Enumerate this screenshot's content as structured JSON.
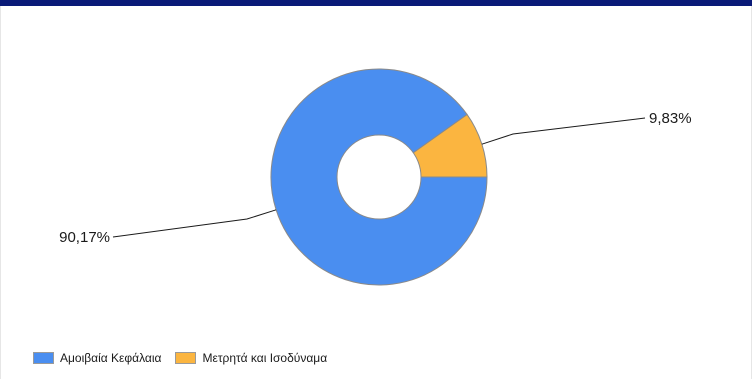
{
  "chart_data": {
    "type": "pie",
    "variant": "donut",
    "slices": [
      {
        "name": "Αμοιβαία Κεφάλαια",
        "value": 90.17,
        "label": "90,17%",
        "color": "#4a8ef0"
      },
      {
        "name": "Μετρητά και Ισοδύναμα",
        "value": 9.83,
        "label": "9,83%",
        "color": "#fbb540"
      }
    ],
    "legend_position": "bottom-left",
    "title": ""
  }
}
